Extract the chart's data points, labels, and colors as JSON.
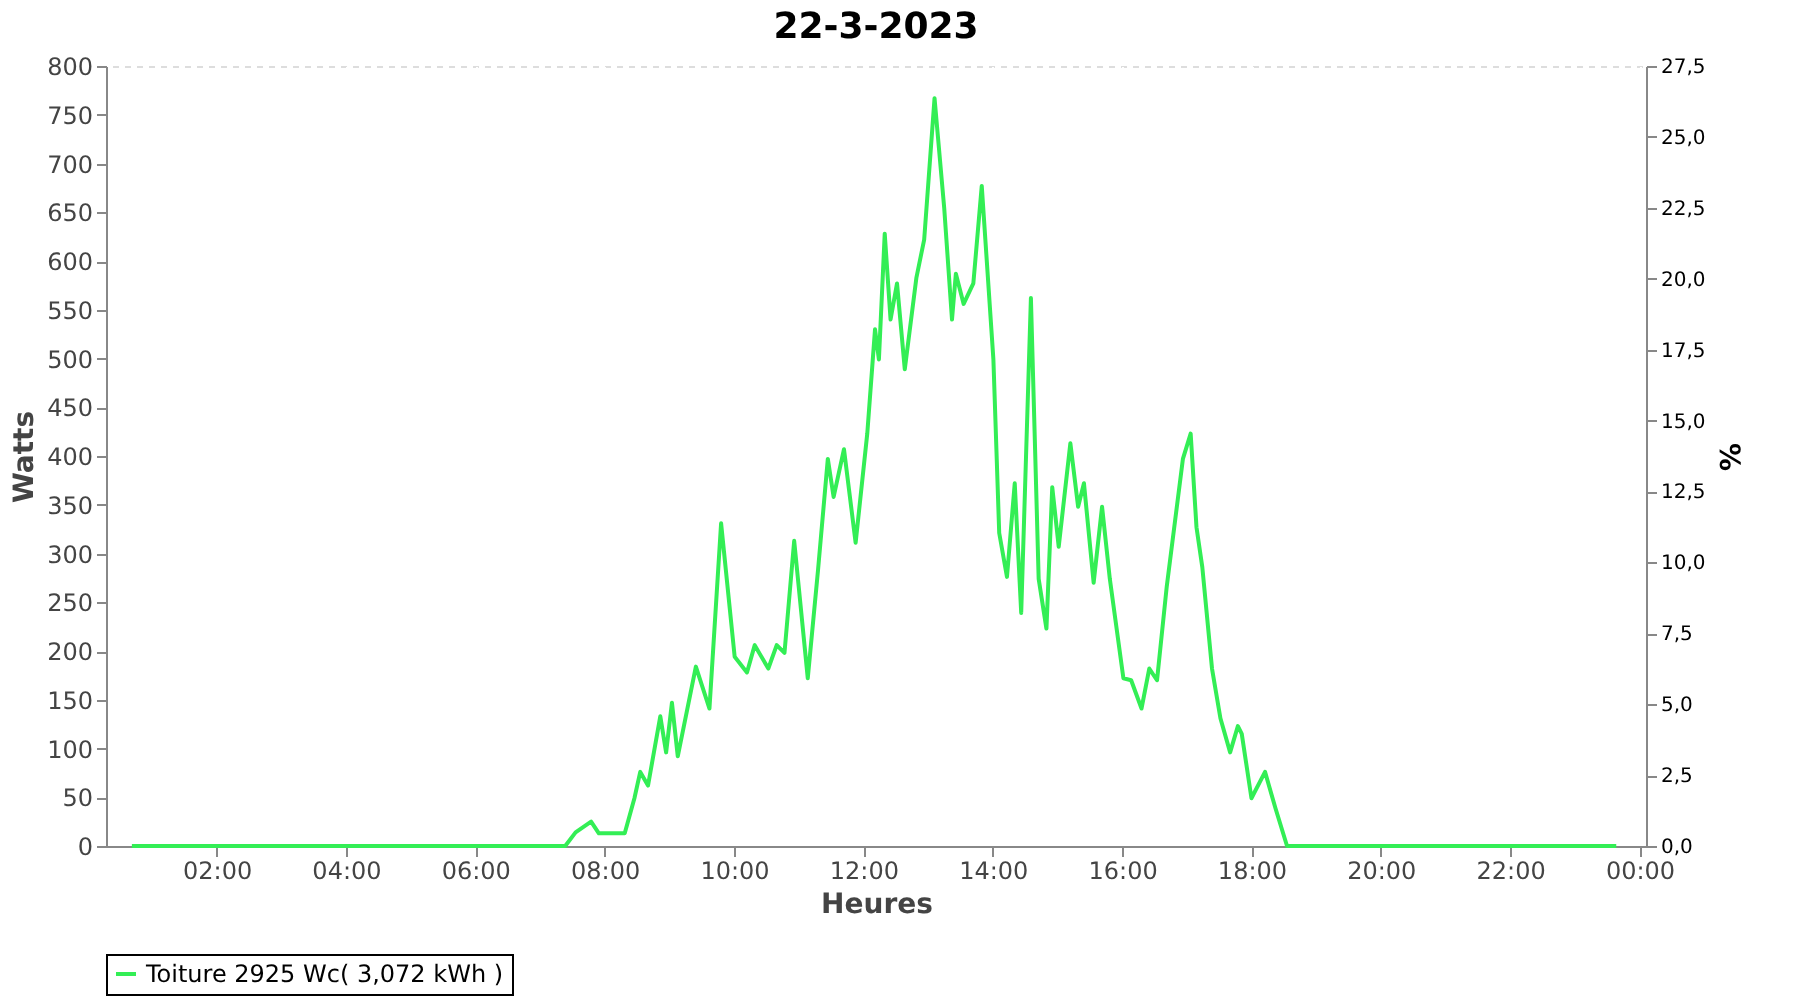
{
  "chart_data": {
    "type": "line",
    "title": "22-3-2023",
    "xlabel": "Heures",
    "ylabel": "Watts",
    "y2label": "%",
    "x": [
      0.69,
      6.78,
      7.39,
      7.55,
      7.79,
      7.91,
      8.31,
      8.46,
      8.55,
      8.67,
      8.86,
      8.95,
      9.04,
      9.13,
      9.41,
      9.62,
      9.8,
      10.01,
      10.2,
      10.32,
      10.53,
      10.66,
      10.78,
      10.93,
      11.14,
      11.3,
      11.45,
      11.54,
      11.7,
      11.88,
      12.06,
      12.18,
      12.24,
      12.33,
      12.42,
      12.52,
      12.64,
      12.82,
      12.94,
      13.1,
      13.25,
      13.37,
      13.43,
      13.55,
      13.7,
      13.83,
      14.01,
      14.1,
      14.22,
      14.34,
      14.44,
      14.59,
      14.71,
      14.83,
      14.92,
      15.02,
      15.2,
      15.32,
      15.41,
      15.56,
      15.69,
      15.81,
      16.02,
      16.14,
      16.3,
      16.42,
      16.54,
      16.69,
      16.94,
      17.06,
      17.15,
      17.24,
      17.39,
      17.52,
      17.67,
      17.79,
      17.85,
      18.0,
      18.21,
      18.37,
      18.55,
      23.64
    ],
    "series": [
      {
        "name": "Toiture 2925 Wc( 3,072 kWh )",
        "color": "#33ee55",
        "values": [
          0,
          0,
          0,
          14,
          25,
          13,
          13,
          49,
          76,
          62,
          133,
          96,
          147,
          92,
          184,
          141,
          331,
          194,
          178,
          206,
          182,
          206,
          198,
          313,
          172,
          284,
          397,
          358,
          407,
          311,
          423,
          530,
          499,
          628,
          540,
          577,
          489,
          583,
          622,
          767,
          654,
          540,
          587,
          556,
          577,
          677,
          499,
          321,
          276,
          372,
          239,
          562,
          274,
          223,
          368,
          307,
          413,
          348,
          372,
          270,
          348,
          274,
          172,
          170,
          141,
          182,
          170,
          266,
          397,
          423,
          327,
          286,
          182,
          131,
          96,
          123,
          115,
          49,
          76,
          39,
          0,
          0
        ]
      }
    ],
    "xlim": [
      0.29,
      24.1
    ],
    "xticks": [
      {
        "value": 2,
        "label": "02:00"
      },
      {
        "value": 4,
        "label": "04:00"
      },
      {
        "value": 6,
        "label": "06:00"
      },
      {
        "value": 8,
        "label": "08:00"
      },
      {
        "value": 10,
        "label": "10:00"
      },
      {
        "value": 12,
        "label": "12:00"
      },
      {
        "value": 14,
        "label": "14:00"
      },
      {
        "value": 16,
        "label": "16:00"
      },
      {
        "value": 18,
        "label": "18:00"
      },
      {
        "value": 20,
        "label": "20:00"
      },
      {
        "value": 22,
        "label": "22:00"
      },
      {
        "value": 24,
        "label": "00:00"
      }
    ],
    "ylim": [
      0,
      800
    ],
    "yticks": [
      0,
      50,
      100,
      150,
      200,
      250,
      300,
      350,
      400,
      450,
      500,
      550,
      600,
      650,
      700,
      750,
      800
    ],
    "y2lim": [
      0,
      27.5
    ],
    "y2ticks": [
      {
        "value": 0,
        "label": "0,0"
      },
      {
        "value": 2.5,
        "label": "2,5"
      },
      {
        "value": 5,
        "label": "5,0"
      },
      {
        "value": 7.5,
        "label": "7,5"
      },
      {
        "value": 10,
        "label": "10,0"
      },
      {
        "value": 12.5,
        "label": "12,5"
      },
      {
        "value": 15,
        "label": "15,0"
      },
      {
        "value": 17.5,
        "label": "17,5"
      },
      {
        "value": 20,
        "label": "20,0"
      },
      {
        "value": 22.5,
        "label": "22,5"
      },
      {
        "value": 25,
        "label": "25,0"
      },
      {
        "value": 27.5,
        "label": "27,5"
      }
    ],
    "grid": true,
    "legend": "bottom",
    "marker": "none",
    "line_style": "solid"
  }
}
